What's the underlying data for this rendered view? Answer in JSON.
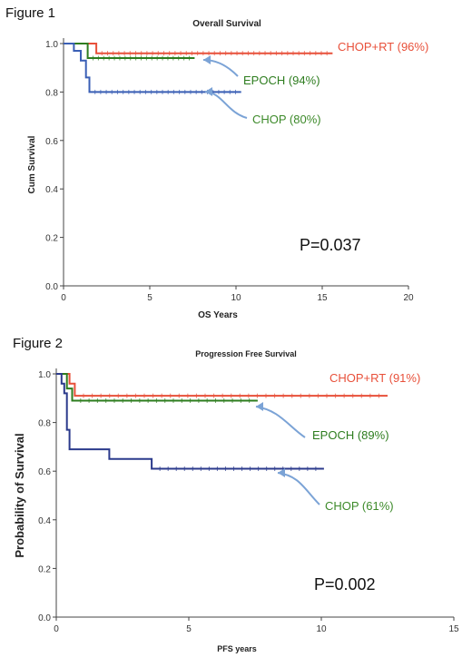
{
  "figure1_label": "Figure 1",
  "figure2_label": "Figure 2",
  "chart_data": [
    {
      "type": "line",
      "title": "Overall Survival",
      "xlabel": "OS Years",
      "ylabel": "Cum Survival",
      "xlim": [
        0,
        20
      ],
      "ylim": [
        0,
        1.0
      ],
      "xticks": [
        0,
        5,
        10,
        15,
        20
      ],
      "yticks": [
        0.0,
        0.2,
        0.4,
        0.6,
        0.8,
        1.0
      ],
      "p_value": "P=0.037",
      "grid": false,
      "series": [
        {
          "name": "CHOP+RT (96%)",
          "color": "#e8503a",
          "x": [
            0,
            1.9,
            1.9,
            15.6
          ],
          "y": [
            1.0,
            1.0,
            0.96,
            0.96
          ]
        },
        {
          "name": "EPOCH (94%)",
          "color": "#2e7d1f",
          "x": [
            0,
            1.4,
            1.4,
            7.6
          ],
          "y": [
            1.0,
            1.0,
            0.94,
            0.94
          ]
        },
        {
          "name": "CHOP (80%)",
          "color": "#3a5fb5",
          "x": [
            0,
            0.6,
            0.6,
            1.0,
            1.0,
            1.3,
            1.3,
            1.5,
            1.5,
            10.3
          ],
          "y": [
            1.0,
            1.0,
            0.97,
            0.97,
            0.93,
            0.93,
            0.86,
            0.86,
            0.8,
            0.8
          ]
        }
      ]
    },
    {
      "type": "line",
      "title": "Progression Free Survival",
      "xlabel": "PFS years",
      "ylabel": "Probability of Survival",
      "xlim": [
        0,
        15
      ],
      "ylim": [
        0,
        1.0
      ],
      "xticks": [
        0,
        5,
        10,
        15
      ],
      "yticks": [
        0.0,
        0.2,
        0.4,
        0.6,
        0.8,
        1.0
      ],
      "p_value": "P=0.002",
      "grid": false,
      "series": [
        {
          "name": "CHOP+RT (91%)",
          "color": "#e8503a",
          "x": [
            0,
            0.5,
            0.5,
            0.7,
            0.7,
            12.5
          ],
          "y": [
            1.0,
            1.0,
            0.96,
            0.96,
            0.91,
            0.91
          ]
        },
        {
          "name": "EPOCH (89%)",
          "color": "#2e7d1f",
          "x": [
            0,
            0.4,
            0.4,
            0.6,
            0.6,
            7.6
          ],
          "y": [
            1.0,
            1.0,
            0.94,
            0.94,
            0.89,
            0.89
          ]
        },
        {
          "name": "CHOP (61%)",
          "color": "#2b3a8c",
          "x": [
            0,
            0.2,
            0.2,
            0.3,
            0.3,
            0.4,
            0.4,
            0.5,
            0.5,
            2.0,
            2.0,
            3.6,
            3.6,
            10.1
          ],
          "y": [
            1.0,
            1.0,
            0.96,
            0.96,
            0.92,
            0.92,
            0.77,
            0.77,
            0.69,
            0.69,
            0.65,
            0.65,
            0.61,
            0.61
          ]
        }
      ]
    }
  ]
}
